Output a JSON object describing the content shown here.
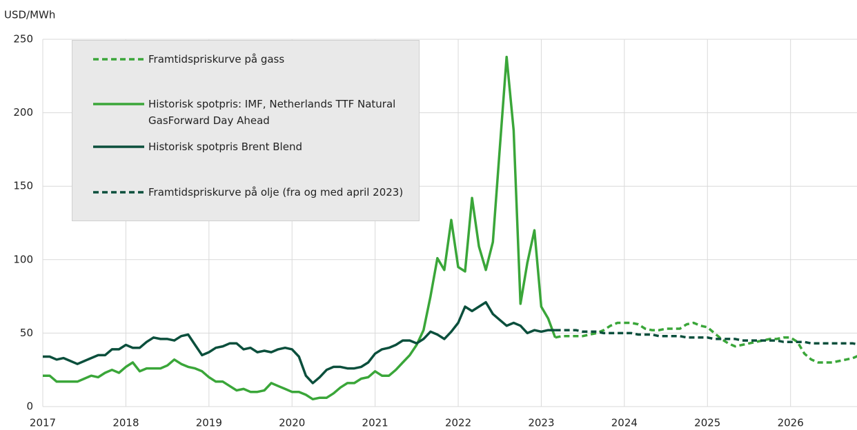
{
  "chart_data": {
    "type": "line",
    "y_label": "USD/MWh",
    "x": [
      2017,
      2017.083,
      2017.167,
      2017.25,
      2017.333,
      2017.417,
      2017.5,
      2017.583,
      2017.667,
      2017.75,
      2017.833,
      2017.917,
      2018,
      2018.083,
      2018.167,
      2018.25,
      2018.333,
      2018.417,
      2018.5,
      2018.583,
      2018.667,
      2018.75,
      2018.833,
      2018.917,
      2019,
      2019.083,
      2019.167,
      2019.25,
      2019.333,
      2019.417,
      2019.5,
      2019.583,
      2019.667,
      2019.75,
      2019.833,
      2019.917,
      2020,
      2020.083,
      2020.167,
      2020.25,
      2020.333,
      2020.417,
      2020.5,
      2020.583,
      2020.667,
      2020.75,
      2020.833,
      2020.917,
      2021,
      2021.083,
      2021.167,
      2021.25,
      2021.333,
      2021.417,
      2021.5,
      2021.583,
      2021.667,
      2021.75,
      2021.833,
      2021.917,
      2022,
      2022.083,
      2022.167,
      2022.25,
      2022.333,
      2022.417,
      2022.5,
      2022.583,
      2022.667,
      2022.75,
      2022.833,
      2022.917,
      2023,
      2023.083,
      2023.167,
      2023.25,
      2023.333,
      2023.417,
      2023.5,
      2023.583,
      2023.667,
      2023.75,
      2023.833,
      2023.917,
      2024,
      2024.083,
      2024.167,
      2024.25,
      2024.333,
      2024.417,
      2024.5,
      2024.583,
      2024.667,
      2024.75,
      2024.833,
      2024.917,
      2025,
      2025.083,
      2025.167,
      2025.25,
      2025.333,
      2025.417,
      2025.5,
      2025.583,
      2025.667,
      2025.75,
      2025.833,
      2025.917,
      2026,
      2026.083,
      2026.167,
      2026.25,
      2026.333,
      2026.417,
      2026.5,
      2026.583,
      2026.667,
      2026.75,
      2026.833
    ],
    "series": [
      {
        "name": "Framtidspriskurve på gass",
        "color": "#3aa639",
        "dashed": true,
        "values": [
          null,
          null,
          null,
          null,
          null,
          null,
          null,
          null,
          null,
          null,
          null,
          null,
          null,
          null,
          null,
          null,
          null,
          null,
          null,
          null,
          null,
          null,
          null,
          null,
          null,
          null,
          null,
          null,
          null,
          null,
          null,
          null,
          null,
          null,
          null,
          null,
          null,
          null,
          null,
          null,
          null,
          null,
          null,
          null,
          null,
          null,
          null,
          null,
          null,
          null,
          null,
          null,
          null,
          null,
          null,
          null,
          null,
          null,
          null,
          null,
          null,
          null,
          null,
          null,
          null,
          null,
          null,
          null,
          null,
          null,
          null,
          null,
          null,
          null,
          47,
          48,
          48,
          48,
          48,
          49,
          50,
          52,
          55,
          57,
          57,
          57,
          56,
          53,
          52,
          52,
          53,
          53,
          53,
          56,
          57,
          55,
          54,
          50,
          46,
          43,
          41,
          42,
          43,
          44,
          45,
          46,
          46,
          47,
          47,
          44,
          36,
          32,
          30,
          30,
          30,
          31,
          32,
          33,
          35
        ]
      },
      {
        "name": "Historisk spotpris: IMF, Netherlands TTF Natural GasForward Day Ahead",
        "color": "#3aa639",
        "dashed": false,
        "values": [
          21,
          21,
          17,
          17,
          17,
          17,
          19,
          21,
          20,
          23,
          25,
          23,
          27,
          30,
          24,
          26,
          26,
          26,
          28,
          32,
          29,
          27,
          26,
          24,
          20,
          17,
          17,
          14,
          11,
          12,
          10,
          10,
          11,
          16,
          14,
          12,
          10,
          10,
          8,
          5,
          6,
          6,
          9,
          13,
          16,
          16,
          19,
          20,
          24,
          21,
          21,
          25,
          30,
          35,
          42,
          52,
          75,
          101,
          93,
          127,
          95,
          92,
          142,
          109,
          93,
          112,
          175,
          238,
          188,
          70,
          98,
          120,
          68,
          60,
          47,
          null,
          null,
          null,
          null,
          null,
          null,
          null,
          null,
          null,
          null,
          null,
          null,
          null,
          null,
          null,
          null,
          null,
          null,
          null,
          null,
          null,
          null,
          null,
          null,
          null,
          null,
          null,
          null,
          null,
          null,
          null,
          null,
          null,
          null,
          null,
          null,
          null,
          null,
          null,
          null,
          null,
          null,
          null,
          null
        ]
      },
      {
        "name": "Historisk spotpris Brent Blend",
        "color": "#0b4f3c",
        "dashed": false,
        "values": [
          34,
          34,
          32,
          33,
          31,
          29,
          31,
          33,
          35,
          35,
          39,
          39,
          42,
          40,
          40,
          44,
          47,
          46,
          46,
          45,
          48,
          49,
          42,
          35,
          37,
          40,
          41,
          43,
          43,
          39,
          40,
          37,
          38,
          37,
          39,
          40,
          39,
          34,
          21,
          16,
          20,
          25,
          27,
          27,
          26,
          26,
          27,
          30,
          36,
          39,
          40,
          42,
          45,
          45,
          43,
          46,
          51,
          49,
          46,
          51,
          57,
          68,
          65,
          68,
          71,
          63,
          59,
          55,
          57,
          55,
          50,
          52,
          51,
          52,
          52,
          null,
          null,
          null,
          null,
          null,
          null,
          null,
          null,
          null,
          null,
          null,
          null,
          null,
          null,
          null,
          null,
          null,
          null,
          null,
          null,
          null,
          null,
          null,
          null,
          null,
          null,
          null,
          null,
          null,
          null,
          null,
          null,
          null,
          null,
          null,
          null,
          null,
          null,
          null,
          null,
          null,
          null,
          null,
          null
        ]
      },
      {
        "name": "Framtidspriskurve på olje (fra og med april 2023)",
        "color": "#0b4f3c",
        "dashed": true,
        "values": [
          null,
          null,
          null,
          null,
          null,
          null,
          null,
          null,
          null,
          null,
          null,
          null,
          null,
          null,
          null,
          null,
          null,
          null,
          null,
          null,
          null,
          null,
          null,
          null,
          null,
          null,
          null,
          null,
          null,
          null,
          null,
          null,
          null,
          null,
          null,
          null,
          null,
          null,
          null,
          null,
          null,
          null,
          null,
          null,
          null,
          null,
          null,
          null,
          null,
          null,
          null,
          null,
          null,
          null,
          null,
          null,
          null,
          null,
          null,
          null,
          null,
          null,
          null,
          null,
          null,
          null,
          null,
          null,
          null,
          null,
          null,
          null,
          null,
          null,
          52,
          52,
          52,
          52,
          51,
          51,
          51,
          50,
          50,
          50,
          50,
          50,
          49,
          49,
          49,
          48,
          48,
          48,
          48,
          47,
          47,
          47,
          47,
          46,
          46,
          46,
          46,
          45,
          45,
          45,
          45,
          45,
          45,
          44,
          44,
          44,
          44,
          43,
          43,
          43,
          43,
          43,
          43,
          43,
          42
        ]
      }
    ],
    "xlim": [
      2017,
      2026.8
    ],
    "xticks": [
      2017,
      2018,
      2019,
      2020,
      2021,
      2022,
      2023,
      2024,
      2025,
      2026
    ],
    "ylim": [
      0,
      250
    ],
    "yticks": [
      0,
      50,
      100,
      150,
      200,
      250
    ],
    "grid": true
  }
}
